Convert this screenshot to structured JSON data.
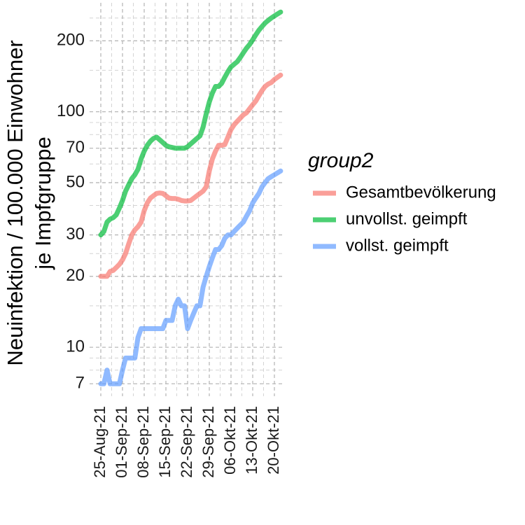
{
  "chart_data": {
    "type": "line",
    "ylabel_line1": "Neuinfektion / 100.000 Einwohner",
    "ylabel_line2": "je  Impfgruppe",
    "xlabel": "",
    "y_scale": "log",
    "ylim": [
      6.2,
      290
    ],
    "y_ticks": [
      7,
      10,
      20,
      30,
      50,
      70,
      100,
      200
    ],
    "y_minor_ticks": [
      8,
      9,
      15,
      25,
      40,
      60,
      80,
      90,
      150,
      250
    ],
    "x_ticks": [
      "25-Aug-21",
      "01-Sep-21",
      "08-Sep-21",
      "15-Sep-21",
      "22-Sep-21",
      "29-Sep-21",
      "06-Okt-21",
      "13-Okt-21",
      "20-Okt-21"
    ],
    "grid": true,
    "legend": {
      "title": "group2",
      "placement": "right",
      "entries": [
        "Gesamtbevölkerung",
        "unvollst. geimpft",
        "vollst. geimpft"
      ]
    },
    "series": [
      {
        "name": "Gesamtbevölkerung",
        "color": "#F8766D",
        "x_day": [
          0,
          1,
          2,
          3,
          4,
          5,
          6,
          7,
          8,
          9,
          10,
          11,
          12,
          13,
          14,
          15,
          16,
          17,
          18,
          19,
          20,
          21,
          22,
          23,
          24,
          25,
          26,
          27,
          28,
          29,
          30,
          31,
          32,
          33,
          34,
          35,
          36,
          37,
          38,
          39,
          40,
          41,
          42,
          43,
          44,
          45,
          46,
          47,
          48,
          49,
          50,
          51,
          52,
          53,
          54,
          55,
          56,
          57,
          58
        ],
        "y": [
          20,
          20,
          20,
          21,
          21.2,
          21.8,
          22.5,
          23.5,
          25,
          27.5,
          30,
          31.5,
          32.5,
          34,
          38,
          41,
          43,
          44,
          45,
          45.2,
          45,
          44,
          43,
          42.8,
          42.8,
          42.5,
          42,
          41.8,
          41.8,
          42,
          43,
          44,
          45,
          46,
          48,
          56,
          63,
          68,
          72,
          72,
          72.5,
          78,
          84,
          88,
          91,
          94,
          97,
          99,
          103,
          107,
          111,
          117,
          123,
          128,
          131,
          133,
          137,
          140,
          143
        ]
      },
      {
        "name": "unvollst. geimpft",
        "color": "#00BA38",
        "x_day": [
          0,
          1,
          2,
          3,
          4,
          5,
          6,
          7,
          8,
          9,
          10,
          11,
          12,
          13,
          14,
          15,
          16,
          17,
          18,
          19,
          20,
          21,
          22,
          23,
          24,
          25,
          26,
          27,
          28,
          29,
          30,
          31,
          32,
          33,
          34,
          35,
          36,
          37,
          38,
          39,
          40,
          41,
          42,
          43,
          44,
          45,
          46,
          47,
          48,
          49,
          50,
          51,
          52,
          53,
          54,
          55,
          56,
          57,
          58
        ],
        "y": [
          30,
          31,
          34,
          35,
          35.5,
          36.5,
          39,
          42,
          46,
          49,
          52,
          54,
          57,
          63,
          68,
          72,
          75,
          77,
          78,
          76,
          74,
          72,
          71,
          70.5,
          70,
          70,
          70,
          70,
          71,
          73,
          75,
          77,
          79,
          86,
          98,
          110,
          120,
          128,
          128,
          132,
          140,
          148,
          155,
          159,
          163,
          170,
          178,
          186,
          193,
          202,
          212,
          222,
          230,
          238,
          244,
          250,
          255,
          260,
          265
        ]
      },
      {
        "name": "vollst. geimpft",
        "color": "#619CFF",
        "x_day": [
          0,
          1,
          2,
          3,
          4,
          5,
          6,
          7,
          8,
          9,
          10,
          11,
          12,
          13,
          14,
          15,
          16,
          17,
          18,
          19,
          20,
          21,
          22,
          23,
          24,
          25,
          26,
          27,
          28,
          29,
          30,
          31,
          32,
          33,
          34,
          35,
          36,
          37,
          38,
          39,
          40,
          41,
          42,
          43,
          44,
          45,
          46,
          47,
          48,
          49,
          50,
          51,
          52,
          53,
          54,
          55,
          56,
          57,
          58
        ],
        "y": [
          7,
          7,
          8,
          7,
          7,
          7,
          7,
          8,
          9,
          9,
          9,
          9,
          11,
          12,
          12,
          12,
          12,
          12,
          12,
          12,
          12,
          13,
          13,
          13,
          15,
          16,
          15,
          15,
          12,
          13,
          14,
          15,
          15,
          18,
          20,
          22,
          24,
          26,
          26,
          27,
          29,
          30,
          30,
          31,
          32,
          33,
          34,
          36,
          38,
          41,
          43,
          45,
          48,
          50,
          52,
          53,
          54,
          55,
          56
        ]
      }
    ]
  }
}
